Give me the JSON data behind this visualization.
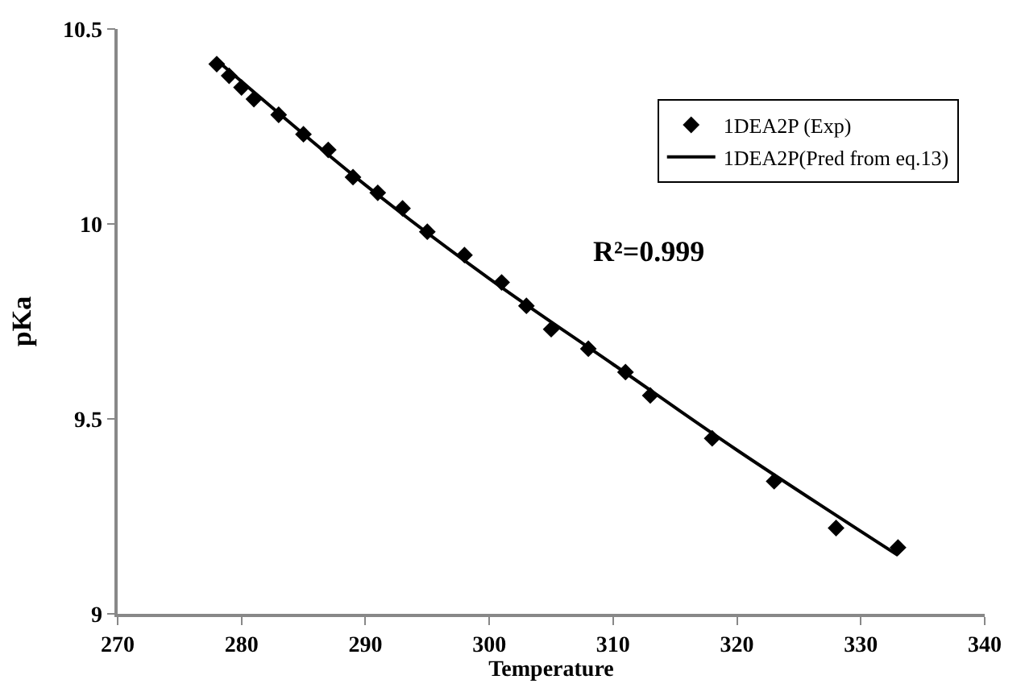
{
  "chart_data": {
    "type": "scatter",
    "xlabel": "Temperature",
    "ylabel": "pKa",
    "annotations": [
      "R²=0.999"
    ],
    "series": [
      {
        "name": "1DEA2P (Exp)",
        "marker": "diamond",
        "color": "#000000",
        "x": [
          278,
          279,
          280,
          281,
          283,
          285,
          287,
          289,
          291,
          293,
          295,
          298,
          301,
          303,
          305,
          308,
          311,
          313,
          318,
          323,
          328,
          333
        ],
        "values": [
          10.41,
          10.38,
          10.35,
          10.32,
          10.28,
          10.23,
          10.19,
          10.12,
          10.08,
          10.04,
          9.98,
          9.92,
          9.85,
          9.79,
          9.73,
          9.68,
          9.62,
          9.56,
          9.45,
          9.34,
          9.22,
          9.17
        ]
      },
      {
        "name": "1DEA2P(Pred from eq.13)",
        "type": "line",
        "marker": "none",
        "line_style": "solid",
        "color": "#000000",
        "x": [
          278,
          290,
          300,
          310,
          320,
          333
        ],
        "values": [
          10.42,
          10.1,
          9.86,
          9.64,
          9.42,
          9.15
        ]
      }
    ],
    "xlim": [
      270,
      340
    ],
    "xticks": [
      270,
      280,
      290,
      300,
      310,
      320,
      330,
      340
    ],
    "ylim": [
      9,
      10.5
    ],
    "yticks": [
      9,
      {
        "value": 9.5,
        "label": "9.5"
      },
      10,
      {
        "value": 10.5,
        "label": "10.5"
      }
    ],
    "legend": "top right"
  }
}
